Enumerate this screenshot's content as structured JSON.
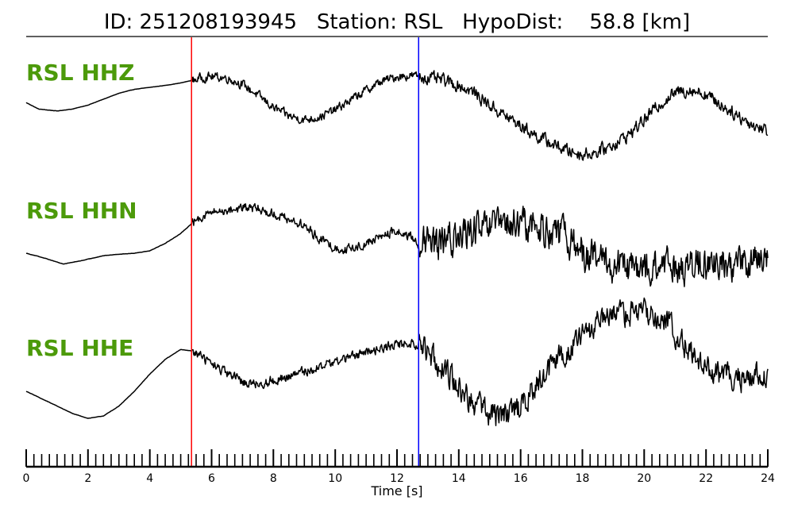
{
  "header": {
    "title": "ID: 251208193945   Station: RSL   HypoDist:    58.8 [km]"
  },
  "chart_data": {
    "type": "line",
    "title": "ID: 251208193945   Station: RSL   HypoDist:    58.8 [km]",
    "xlabel": "Time [s]",
    "xlim": [
      0,
      24
    ],
    "x_ticks": [
      0,
      2,
      4,
      6,
      8,
      10,
      12,
      14,
      16,
      18,
      20,
      22,
      24
    ],
    "x_tick_labels": [
      "0",
      "2",
      "4",
      "6",
      "8",
      "10",
      "12",
      "14",
      "16",
      "18",
      "20",
      "22",
      "24"
    ],
    "minor_tick_step": 0.25,
    "picks": [
      {
        "phase": "P",
        "time": 5.35,
        "color": "#ff0000"
      },
      {
        "phase": "S",
        "time": 12.7,
        "color": "#0000ff"
      }
    ],
    "label_color": "#4c9a0a",
    "trace_color": "#000000",
    "series": [
      {
        "name": "RSL HHZ",
        "noise": [
          0.004,
          0.14,
          0.2
        ],
        "t": [
          0,
          0.4,
          1.0,
          1.5,
          2.0,
          2.5,
          3.0,
          3.5,
          4.0,
          4.5,
          5.0,
          5.35,
          5.7,
          6.0,
          6.5,
          7.0,
          7.5,
          8.0,
          8.5,
          9.0,
          9.5,
          10.0,
          10.5,
          11.0,
          11.5,
          12.0,
          12.5,
          12.7,
          13.0,
          13.5,
          14.0,
          14.5,
          15.0,
          15.5,
          16.0,
          16.5,
          17.0,
          17.5,
          18.0,
          18.5,
          19.0,
          19.5,
          20.0,
          20.5,
          21.0,
          21.5,
          22.0,
          22.5,
          23.0,
          23.5,
          24.0
        ],
        "v": [
          -0.15,
          -0.28,
          -0.32,
          -0.28,
          -0.2,
          -0.08,
          0.04,
          0.12,
          0.16,
          0.2,
          0.25,
          0.3,
          0.36,
          0.38,
          0.35,
          0.22,
          0.0,
          -0.25,
          -0.42,
          -0.5,
          -0.44,
          -0.3,
          -0.1,
          0.1,
          0.28,
          0.38,
          0.4,
          0.38,
          0.35,
          0.3,
          0.2,
          0.05,
          -0.2,
          -0.42,
          -0.62,
          -0.82,
          -0.98,
          -1.12,
          -1.2,
          -1.15,
          -1.0,
          -0.8,
          -0.5,
          -0.18,
          0.05,
          0.12,
          0.02,
          -0.2,
          -0.4,
          -0.6,
          -0.72
        ]
      },
      {
        "name": "RSL HHN",
        "noise": [
          0.005,
          0.15,
          0.55
        ],
        "t": [
          0,
          0.6,
          1.2,
          1.8,
          2.5,
          3.0,
          3.5,
          4.0,
          4.5,
          5.0,
          5.35,
          5.8,
          6.5,
          7.0,
          7.5,
          8.0,
          8.5,
          9.0,
          9.5,
          10.0,
          10.5,
          11.0,
          11.5,
          12.0,
          12.5,
          12.7,
          13.0,
          13.5,
          14.0,
          14.5,
          15.0,
          15.5,
          16.0,
          16.5,
          17.0,
          17.5,
          18.0,
          18.5,
          19.0,
          19.5,
          20.0,
          20.5,
          21.0,
          21.5,
          22.0,
          22.5,
          23.0,
          23.5,
          24.0
        ],
        "v": [
          -0.5,
          -0.6,
          -0.72,
          -0.65,
          -0.55,
          -0.52,
          -0.5,
          -0.45,
          -0.3,
          -0.1,
          0.1,
          0.3,
          0.38,
          0.42,
          0.4,
          0.3,
          0.2,
          0.05,
          -0.2,
          -0.4,
          -0.42,
          -0.3,
          -0.15,
          -0.05,
          -0.2,
          -0.3,
          -0.35,
          -0.3,
          -0.15,
          -0.05,
          0.0,
          0.05,
          0.08,
          0.05,
          -0.05,
          -0.2,
          -0.45,
          -0.65,
          -0.75,
          -0.82,
          -0.85,
          -0.8,
          -0.78,
          -0.78,
          -0.75,
          -0.72,
          -0.7,
          -0.68,
          -0.7
        ]
      },
      {
        "name": "RSL HHE",
        "noise": [
          0.004,
          0.15,
          0.4
        ],
        "t": [
          0,
          0.5,
          1.0,
          1.5,
          2.0,
          2.5,
          3.0,
          3.5,
          4.0,
          4.5,
          5.0,
          5.35,
          5.7,
          6.0,
          6.5,
          7.0,
          7.5,
          8.0,
          8.5,
          9.0,
          9.5,
          10.0,
          10.5,
          11.0,
          11.5,
          12.0,
          12.5,
          12.7,
          13.0,
          13.5,
          14.0,
          14.5,
          15.0,
          15.5,
          16.0,
          16.5,
          17.0,
          17.5,
          18.0,
          18.5,
          19.0,
          19.5,
          20.0,
          20.5,
          21.0,
          21.5,
          22.0,
          22.5,
          23.0,
          23.5,
          24.0
        ],
        "v": [
          -0.5,
          -0.65,
          -0.8,
          -0.95,
          -1.05,
          -1.0,
          -0.8,
          -0.5,
          -0.15,
          0.15,
          0.35,
          0.32,
          0.2,
          0.05,
          -0.15,
          -0.3,
          -0.35,
          -0.28,
          -0.2,
          -0.1,
          0.0,
          0.1,
          0.2,
          0.3,
          0.38,
          0.45,
          0.48,
          0.45,
          0.3,
          0.0,
          -0.4,
          -0.75,
          -0.95,
          -1.0,
          -0.8,
          -0.4,
          0.0,
          0.35,
          0.6,
          0.85,
          1.0,
          1.1,
          1.15,
          1.0,
          0.7,
          0.3,
          -0.05,
          -0.2,
          -0.25,
          -0.18,
          -0.12
        ]
      }
    ]
  }
}
